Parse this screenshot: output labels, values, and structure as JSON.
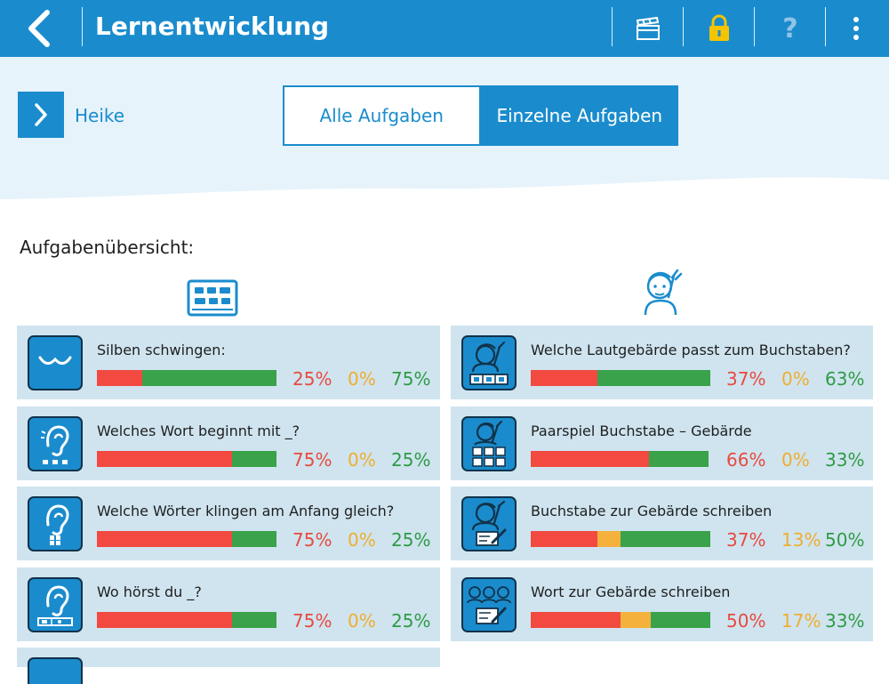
{
  "header": {
    "title": "Lernentwicklung",
    "help_label": "?"
  },
  "student": {
    "name": "Heike"
  },
  "view_toggle": [
    {
      "label": "Alle Aufgaben",
      "active": false
    },
    {
      "label": "Einzelne Aufgaben",
      "active": true
    }
  ],
  "section_title": "Aufgabenübersicht:",
  "colors": {
    "accent": "#1a8ccd",
    "wrong": "#f24a40",
    "partial": "#f4b23c",
    "correct": "#39a24a"
  },
  "columns": [
    {
      "icon": "letters-board-icon",
      "tasks": [
        {
          "name": "Silben schwingen:",
          "icon": "syllable-wave-icon",
          "pct": {
            "red": "25%",
            "orange": "0%",
            "green": "75%"
          },
          "fractions": [
            0.25,
            0,
            0.75
          ]
        },
        {
          "name": "Welches Wort beginnt mit _?",
          "icon": "ear-dots-icon",
          "pct": {
            "red": "75%",
            "orange": "0%",
            "green": "25%"
          },
          "fractions": [
            0.75,
            0,
            0.25
          ]
        },
        {
          "name": "Welche Wörter klingen am Anfang gleich?",
          "icon": "ear-grid-icon",
          "pct": {
            "red": "75%",
            "orange": "0%",
            "green": "25%"
          },
          "fractions": [
            0.75,
            0,
            0.25
          ]
        },
        {
          "name": "Wo hörst du _?",
          "icon": "ear-position-icon",
          "pct": {
            "red": "75%",
            "orange": "0%",
            "green": "25%"
          },
          "fractions": [
            0.75,
            0,
            0.25
          ]
        }
      ]
    },
    {
      "icon": "sign-gesture-icon",
      "tasks": [
        {
          "name": "Welche Lautgebärde passt zum Buchstaben?",
          "icon": "gesture-abc-icon",
          "pct": {
            "red": "37%",
            "orange": "0%",
            "green": "63%"
          },
          "fractions": [
            0.37,
            0,
            0.63
          ]
        },
        {
          "name": "Paarspiel Buchstabe – Gebärde",
          "icon": "gesture-pairs-icon",
          "pct": {
            "red": "66%",
            "orange": "0%",
            "green": "33%"
          },
          "fractions": [
            0.66,
            0,
            0.33
          ]
        },
        {
          "name": "Buchstabe zur Gebärde schreiben",
          "icon": "gesture-write-icon",
          "pct": {
            "red": "37%",
            "orange": "13%",
            "green": "50%"
          },
          "fractions": [
            0.37,
            0.13,
            0.5
          ]
        },
        {
          "name": "Wort zur Gebärde schreiben",
          "icon": "gestures-word-icon",
          "pct": {
            "red": "50%",
            "orange": "17%",
            "green": "33%"
          },
          "fractions": [
            0.5,
            0.17,
            0.33
          ]
        }
      ]
    }
  ]
}
